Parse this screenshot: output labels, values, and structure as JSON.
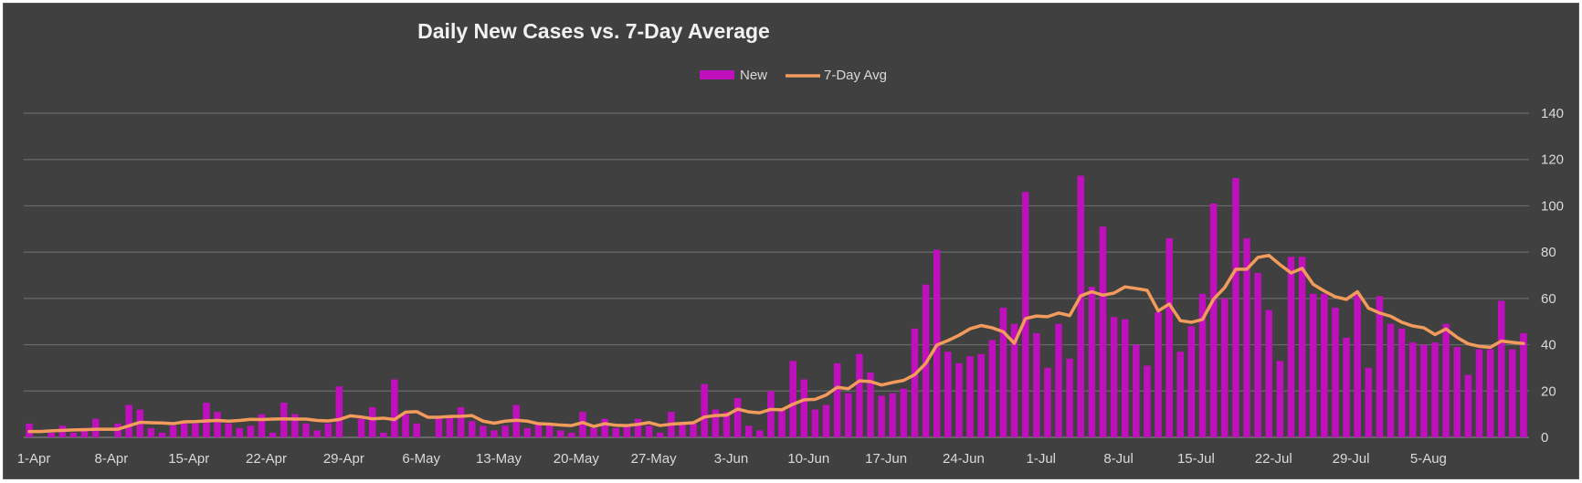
{
  "chart_data": {
    "type": "bar",
    "title": "Daily New Cases vs. 7-Day Average",
    "legend_position": "top-center",
    "grid": true,
    "ylim": [
      0,
      140
    ],
    "yticks": [
      "0",
      "20",
      "40",
      "60",
      "80",
      "100",
      "120",
      "140"
    ],
    "x_tick_labels": [
      "1-Apr",
      "8-Apr",
      "15-Apr",
      "22-Apr",
      "29-Apr",
      "6-May",
      "13-May",
      "20-May",
      "27-May",
      "3-Jun",
      "10-Jun",
      "17-Jun",
      "24-Jun",
      "1-Jul",
      "8-Jul",
      "15-Jul",
      "22-Jul",
      "29-Jul",
      "5-Aug"
    ],
    "series": [
      {
        "name": "New",
        "type": "bar",
        "color": "#c00fbc",
        "values": [
          6,
          0,
          2,
          5,
          2,
          4,
          8,
          0,
          6,
          14,
          12,
          4,
          2,
          5,
          6,
          6,
          15,
          11,
          6,
          4,
          5,
          10,
          2,
          15,
          10,
          6,
          3,
          6,
          22,
          0,
          8,
          13,
          2,
          25,
          10,
          6,
          0,
          9,
          9,
          13,
          7,
          5,
          3,
          5,
          14,
          4,
          6,
          5,
          3,
          2,
          11,
          4,
          8,
          4,
          5,
          8,
          5,
          2,
          11,
          6,
          6,
          23,
          12,
          11,
          17,
          5,
          3,
          20,
          12,
          33,
          25,
          12,
          14,
          32,
          19,
          36,
          28,
          18,
          19,
          21,
          47,
          66,
          81,
          37,
          32,
          35,
          36,
          42,
          56,
          49,
          106,
          45,
          30,
          49,
          34,
          113,
          65,
          91,
          52,
          51,
          40,
          31,
          54,
          86,
          37,
          48,
          62,
          101,
          60,
          112,
          86,
          71,
          55,
          33,
          78,
          78,
          62,
          62,
          56,
          43,
          62,
          30,
          61,
          49,
          47,
          41,
          40,
          41,
          49,
          39,
          27,
          38,
          38,
          59,
          38,
          45
        ]
      },
      {
        "name": "7-Day Avg",
        "type": "line",
        "color": "#f39b5c",
        "values": [
          2.5,
          2.5,
          2.8,
          3.0,
          3.2,
          3.3,
          3.5,
          3.5,
          3.5,
          5.0,
          6.5,
          6.3,
          6.2,
          5.9,
          6.7,
          6.8,
          7.1,
          7.3,
          7.0,
          7.3,
          7.8,
          7.7,
          7.9,
          8.0,
          7.9,
          7.9,
          7.3,
          7.1,
          7.7,
          9.3,
          8.8,
          8.0,
          8.3,
          7.7,
          10.9,
          11.1,
          8.7,
          8.7,
          9.0,
          9.1,
          9.4,
          7.0,
          6.1,
          7.0,
          7.4,
          7.0,
          5.9,
          5.7,
          5.3,
          5.1,
          6.4,
          4.7,
          5.9,
          5.2,
          5.1,
          5.6,
          6.4,
          5.1,
          5.7,
          6.0,
          6.3,
          8.8,
          9.4,
          9.6,
          12.2,
          11.0,
          10.6,
          12.1,
          11.9,
          14.3,
          16.2,
          16.4,
          18.3,
          21.6,
          21.0,
          24.4,
          24.1,
          22.6,
          23.7,
          24.6,
          27.1,
          32.0,
          39.9,
          41.8,
          44.1,
          46.9,
          48.3,
          47.3,
          45.6,
          40.6,
          51.3,
          52.4,
          52.1,
          53.7,
          52.6,
          61.1,
          62.9,
          61.4,
          62.3,
          65.0,
          64.3,
          63.5,
          54.6,
          57.6,
          50.4,
          49.7,
          50.9,
          59.7,
          64.7,
          72.6,
          72.6,
          77.7,
          78.6,
          74.6,
          71.0,
          73.0,
          66.1,
          63.2,
          60.7,
          59.6,
          62.9,
          55.8,
          53.7,
          52.3,
          49.7,
          48.1,
          47.3,
          44.4,
          46.8,
          43.2,
          40.4,
          39.3,
          38.9,
          41.6,
          41.0,
          40.5
        ]
      }
    ]
  }
}
